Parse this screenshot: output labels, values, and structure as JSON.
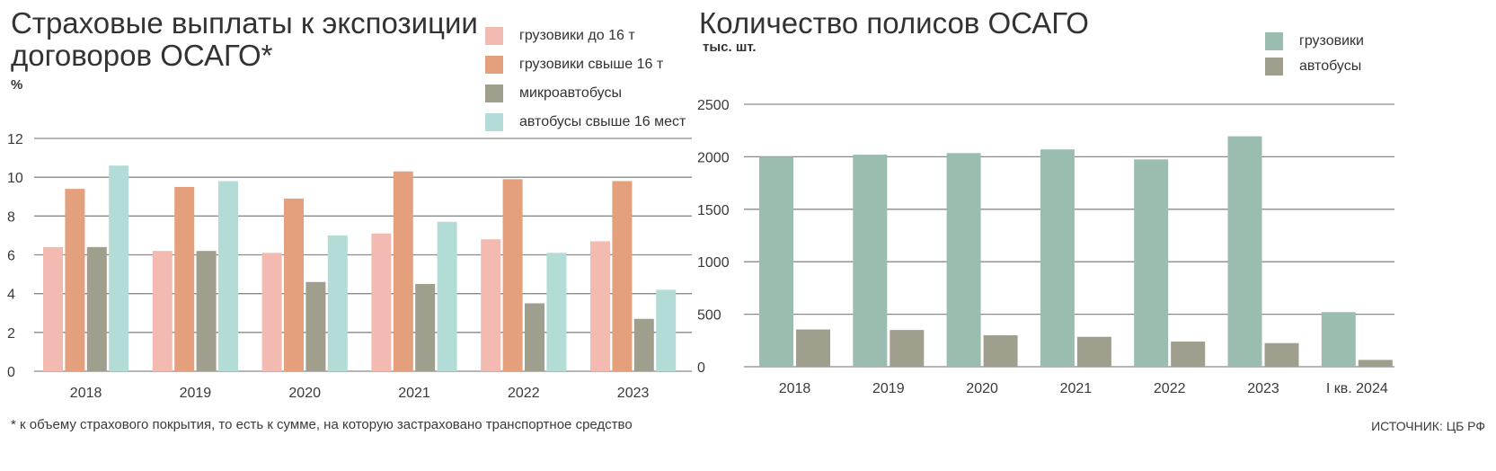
{
  "chart_data": [
    {
      "type": "bar",
      "title": "Страховые выплаты к экспозиции договоров ОСАГО*",
      "ylabel": "%",
      "xlabel": "",
      "categories": [
        "2018",
        "2019",
        "2020",
        "2021",
        "2022",
        "2023"
      ],
      "ylim": [
        0,
        12
      ],
      "yticks": [
        "0",
        "2",
        "4",
        "6",
        "8",
        "10",
        "12"
      ],
      "grid": true,
      "legend_position": "top-right",
      "series": [
        {
          "name": "грузовики до 16 т",
          "color": "#f2bab1",
          "values": [
            6.4,
            6.2,
            6.1,
            7.1,
            6.8,
            6.7
          ]
        },
        {
          "name": "грузовики свыше 16 т",
          "color": "#e4a07d",
          "values": [
            9.4,
            9.5,
            8.9,
            10.3,
            9.9,
            9.8
          ]
        },
        {
          "name": "микроавтобусы",
          "color": "#a09e8c",
          "values": [
            6.4,
            6.2,
            4.6,
            4.5,
            3.5,
            2.7
          ]
        },
        {
          "name": "автобусы свыше 16 мест",
          "color": "#b4dcd7",
          "values": [
            10.6,
            9.8,
            7.0,
            7.7,
            6.1,
            4.2
          ]
        }
      ]
    },
    {
      "type": "bar",
      "title": "Количество полисов ОСАГО",
      "ylabel": "тыс. шт.",
      "xlabel": "",
      "categories": [
        "2018",
        "2019",
        "2020",
        "2021",
        "2022",
        "2023",
        "I кв. 2024"
      ],
      "ylim": [
        0,
        2500
      ],
      "yticks": [
        "0",
        "500",
        "1000",
        "1500",
        "2000",
        "2500"
      ],
      "grid": true,
      "legend_position": "top-right",
      "series": [
        {
          "name": "грузовики",
          "color": "#9bbdb0",
          "values": [
            2000,
            2020,
            2035,
            2070,
            1975,
            2195,
            520
          ]
        },
        {
          "name": "автобусы",
          "color": "#a09e8c",
          "values": [
            355,
            350,
            300,
            285,
            240,
            225,
            65
          ]
        }
      ]
    }
  ],
  "footnote": "* к объему страхового покрытия, то есть к сумме, на которую застраховано транспортное средство",
  "source": "ИСТОЧНИК: ЦБ РФ"
}
